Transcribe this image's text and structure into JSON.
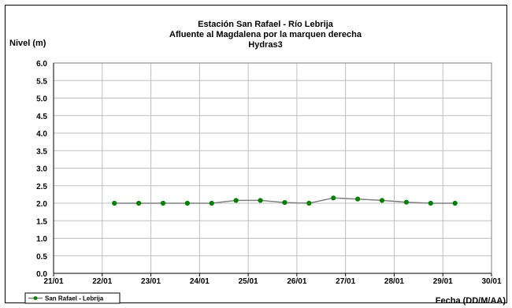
{
  "chart_data": {
    "type": "line",
    "title": "Estación San Rafael - Río Lebrija",
    "subtitle": "Afluente al Magdalena por la marquen derecha",
    "subtitle2": "Hydras3",
    "ylabel": "Nivel (m)",
    "xlabel": "Fecha (DD/M/AA)",
    "x_tick_labels": [
      "21/01",
      "22/01",
      "23/01",
      "24/01",
      "25/01",
      "26/01",
      "27/01",
      "28/01",
      "29/01",
      "30/01"
    ],
    "y_tick_labels": [
      "0.0",
      "0.5",
      "1.0",
      "1.5",
      "2.0",
      "2.5",
      "3.0",
      "3.5",
      "4.0",
      "4.5",
      "5.0",
      "5.5",
      "6.0"
    ],
    "xlim": [
      0,
      9
    ],
    "ylim": [
      0,
      6
    ],
    "grid": true,
    "legend_position": "bottom-left",
    "series": [
      {
        "name": "San Rafael - Lebrija",
        "line_color": "#808080",
        "marker_color": "#008000",
        "x": [
          1.25,
          1.75,
          2.25,
          2.75,
          3.25,
          3.75,
          4.25,
          4.75,
          5.25,
          5.75,
          6.25,
          6.75,
          7.25,
          7.75,
          8.25
        ],
        "values": [
          2.0,
          2.0,
          2.0,
          2.0,
          2.0,
          2.08,
          2.08,
          2.02,
          2.0,
          2.15,
          2.12,
          2.08,
          2.03,
          2.0,
          2.0
        ]
      }
    ]
  }
}
